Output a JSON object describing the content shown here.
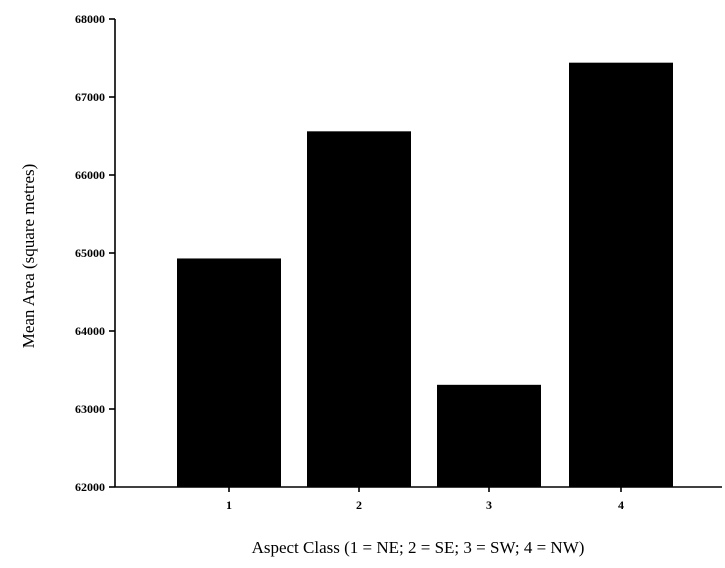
{
  "chart_data": {
    "type": "bar",
    "title": "",
    "xlabel": "Aspect Class (1 = NE; 2 = SE; 3 = SW; 4 = NW)",
    "ylabel": "Mean Area (square metres)",
    "categories": [
      "1",
      "2",
      "3",
      "4"
    ],
    "values": [
      64930,
      66560,
      63310,
      67440
    ],
    "ylim": [
      62000,
      68000
    ],
    "yticks": [
      62000,
      63000,
      64000,
      65000,
      66000,
      67000,
      68000
    ],
    "ytick_labels": [
      "62000",
      "63000",
      "64000",
      "65000",
      "66000",
      "67000",
      "68000"
    ],
    "grid": false,
    "legend": "none",
    "bar_color": "#000000"
  }
}
